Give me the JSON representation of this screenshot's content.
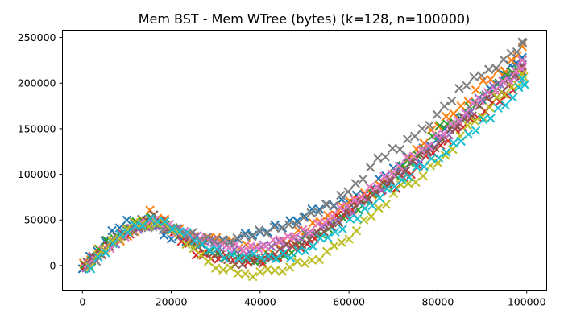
{
  "chart_data": {
    "type": "scatter",
    "title": "Mem BST - Mem WTree (bytes) (k=128, n=100000)",
    "xlabel": "",
    "ylabel": "",
    "xlim": [
      -4500,
      104500
    ],
    "ylim": [
      -27000,
      258000
    ],
    "xticks": [
      0,
      20000,
      40000,
      60000,
      80000,
      100000
    ],
    "yticks": [
      0,
      50000,
      100000,
      150000,
      200000,
      250000
    ],
    "marker": "x",
    "grid": false,
    "legend": "none",
    "x": [
      0,
      5000,
      10000,
      15000,
      20000,
      25000,
      30000,
      35000,
      40000,
      45000,
      50000,
      55000,
      60000,
      65000,
      70000,
      75000,
      80000,
      85000,
      90000,
      95000,
      99000
    ],
    "series": [
      {
        "color": "#1f77b4",
        "values": [
          0,
          28000,
          48000,
          48000,
          30000,
          25000,
          26000,
          30000,
          35000,
          45000,
          55000,
          65000,
          72000,
          85000,
          105000,
          122000,
          140000,
          160000,
          185000,
          210000,
          228000
        ]
      },
      {
        "color": "#ff7f0e",
        "values": [
          0,
          22000,
          32000,
          58000,
          42000,
          32000,
          28000,
          22000,
          20000,
          25000,
          40000,
          55000,
          68000,
          80000,
          100000,
          125000,
          155000,
          175000,
          200000,
          215000,
          240000
        ]
      },
      {
        "color": "#2ca02c",
        "values": [
          0,
          24000,
          42000,
          52000,
          38000,
          25000,
          12000,
          8000,
          8000,
          10000,
          30000,
          42000,
          58000,
          75000,
          100000,
          120000,
          150000,
          165000,
          185000,
          205000,
          225000
        ]
      },
      {
        "color": "#d62728",
        "values": [
          0,
          20000,
          38000,
          50000,
          35000,
          15000,
          8000,
          5000,
          6000,
          15000,
          22000,
          50000,
          62000,
          82000,
          88000,
          110000,
          130000,
          155000,
          170000,
          185000,
          212000
        ]
      },
      {
        "color": "#9467bd",
        "values": [
          0,
          22000,
          38000,
          45000,
          40000,
          30000,
          22000,
          18000,
          20000,
          25000,
          35000,
          45000,
          60000,
          80000,
          100000,
          115000,
          140000,
          160000,
          190000,
          205000,
          220000
        ]
      },
      {
        "color": "#8c564b",
        "values": [
          0,
          23000,
          40000,
          52000,
          40000,
          20000,
          8000,
          3000,
          8000,
          20000,
          30000,
          42000,
          65000,
          82000,
          100000,
          118000,
          140000,
          160000,
          180000,
          200000,
          218000
        ]
      },
      {
        "color": "#e377c2",
        "values": [
          0,
          22000,
          40000,
          48000,
          40000,
          30000,
          22000,
          20000,
          22000,
          30000,
          40000,
          55000,
          70000,
          90000,
          110000,
          125000,
          148000,
          168000,
          188000,
          205000,
          225000
        ]
      },
      {
        "color": "#7f7f7f",
        "values": [
          0,
          25000,
          40000,
          45000,
          38000,
          30000,
          28000,
          30000,
          38000,
          45000,
          55000,
          68000,
          90000,
          115000,
          130000,
          150000,
          172000,
          200000,
          215000,
          230000,
          245000
        ]
      },
      {
        "color": "#bcbd22",
        "values": [
          0,
          26000,
          44000,
          48000,
          35000,
          8000,
          -3000,
          -10000,
          -8000,
          0,
          5000,
          18000,
          40000,
          62000,
          85000,
          100000,
          120000,
          150000,
          175000,
          195000,
          210000
        ]
      },
      {
        "color": "#17becf",
        "values": [
          0,
          25000,
          42000,
          52000,
          38000,
          22000,
          12000,
          10000,
          8000,
          12000,
          22000,
          35000,
          55000,
          75000,
          92000,
          112000,
          125000,
          142000,
          165000,
          185000,
          205000
        ]
      }
    ]
  }
}
